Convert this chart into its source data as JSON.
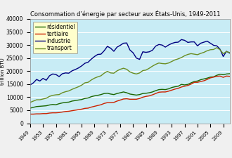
{
  "title": "Consommation d’énergie par secteur aux États-Unis, 1949-2011",
  "ylabel": "trillion BTU",
  "years": [
    1949,
    1950,
    1951,
    1952,
    1953,
    1954,
    1955,
    1956,
    1957,
    1958,
    1959,
    1960,
    1961,
    1962,
    1963,
    1964,
    1965,
    1966,
    1967,
    1968,
    1969,
    1970,
    1971,
    1972,
    1973,
    1974,
    1975,
    1976,
    1977,
    1978,
    1979,
    1980,
    1981,
    1982,
    1983,
    1984,
    1985,
    1986,
    1987,
    1988,
    1989,
    1990,
    1991,
    1992,
    1993,
    1994,
    1995,
    1996,
    1997,
    1998,
    1999,
    2000,
    2001,
    2002,
    2003,
    2004,
    2005,
    2006,
    2007,
    2008,
    2009,
    2010,
    2011
  ],
  "residentiel": [
    5800,
    6100,
    6400,
    6500,
    6600,
    6700,
    7000,
    7200,
    7100,
    7500,
    7800,
    8000,
    8100,
    8500,
    8700,
    8900,
    9100,
    9500,
    9700,
    10200,
    10500,
    10700,
    11000,
    11400,
    11500,
    11200,
    11000,
    11400,
    11700,
    12000,
    11700,
    11200,
    11000,
    10800,
    11000,
    11400,
    11500,
    11700,
    12000,
    12500,
    12900,
    13000,
    12900,
    13200,
    13700,
    14000,
    14200,
    14900,
    14700,
    14900,
    15500,
    16000,
    16200,
    16700,
    17000,
    17300,
    17700,
    17800,
    18400,
    18800,
    18600,
    18900,
    19000
  ],
  "tertiaire": [
    3500,
    3500,
    3600,
    3600,
    3700,
    3700,
    3900,
    4000,
    4000,
    4100,
    4300,
    4500,
    4600,
    4800,
    5000,
    5200,
    5400,
    5700,
    5800,
    6200,
    6500,
    6800,
    7100,
    7600,
    7900,
    7900,
    8000,
    8500,
    8900,
    9300,
    9400,
    9200,
    9200,
    9200,
    9500,
    10000,
    10300,
    10500,
    10900,
    11400,
    11900,
    12000,
    12000,
    12300,
    12700,
    13100,
    13400,
    13900,
    14200,
    14500,
    15000,
    15700,
    15700,
    16000,
    16300,
    16800,
    17400,
    17700,
    18000,
    18100,
    17600,
    18100,
    18000
  ],
  "industrie": [
    14700,
    15500,
    16800,
    16200,
    17200,
    16500,
    18200,
    18900,
    18700,
    17900,
    19000,
    19300,
    19200,
    20100,
    20600,
    21200,
    22000,
    23000,
    23400,
    24600,
    25600,
    26400,
    26500,
    27800,
    29500,
    28800,
    27600,
    29200,
    29900,
    30700,
    30800,
    28100,
    27000,
    25000,
    24500,
    27400,
    27200,
    27400,
    28000,
    29600,
    30200,
    30000,
    29200,
    30000,
    30600,
    31000,
    31100,
    32100,
    31800,
    31000,
    31200,
    31200,
    29700,
    30700,
    31100,
    31500,
    30700,
    29900,
    29700,
    28400,
    25600,
    27600,
    26900
  ],
  "transport": [
    8000,
    8500,
    9000,
    9000,
    9300,
    9600,
    10300,
    10700,
    10900,
    11000,
    11700,
    12100,
    12400,
    13000,
    13500,
    14000,
    14600,
    15500,
    15700,
    16600,
    17300,
    17800,
    18200,
    19200,
    19900,
    19300,
    19200,
    20100,
    20700,
    21100,
    20700,
    19700,
    19200,
    18900,
    19300,
    20200,
    20400,
    21100,
    21900,
    22600,
    23100,
    22900,
    22800,
    23100,
    23700,
    24300,
    24700,
    25200,
    25900,
    26400,
    26700,
    26500,
    26300,
    26800,
    27200,
    27800,
    28200,
    28300,
    29000,
    28200,
    26700,
    27500,
    27100
  ],
  "color_residentiel": "#1a6600",
  "color_tertiaire": "#cc2200",
  "color_industrie": "#000080",
  "color_transport": "#6b8e23",
  "background_color": "#c8ecf5",
  "fig_facecolor": "#f0f0f0",
  "legend_facecolor": "#ffffcc",
  "ylim": [
    0,
    40000
  ],
  "yticks": [
    0,
    5000,
    10000,
    15000,
    20000,
    25000,
    30000,
    35000,
    40000
  ],
  "xtick_years": [
    1949,
    1953,
    1957,
    1961,
    1965,
    1969,
    1973,
    1977,
    1981,
    1985,
    1989,
    1993,
    1997,
    2001,
    2005,
    2009
  ],
  "legend_labels": [
    "résidentiel",
    "tertiaire",
    "industrie",
    "transport"
  ]
}
